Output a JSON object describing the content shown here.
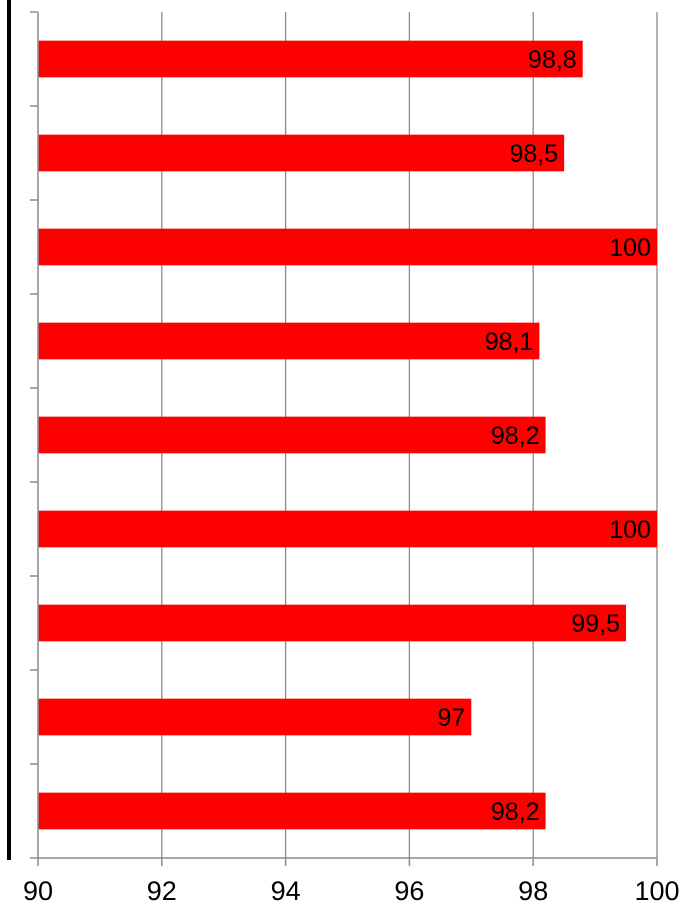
{
  "chart_data": {
    "type": "bar",
    "orientation": "horizontal",
    "categories": [
      "",
      "",
      "",
      "",
      "",
      "",
      "",
      "",
      ""
    ],
    "values": [
      98.8,
      98.5,
      100,
      98.1,
      98.2,
      100,
      99.5,
      97,
      98.2
    ],
    "data_labels": [
      "98,8",
      "98,5",
      "100",
      "98,1",
      "98,2",
      "100",
      "99,5",
      "97",
      "98,2"
    ],
    "xlim": [
      90,
      100
    ],
    "x_ticks": [
      90,
      92,
      94,
      96,
      98,
      100
    ],
    "x_tick_labels": [
      "90",
      "92",
      "94",
      "96",
      "98",
      "100"
    ],
    "title": "",
    "xlabel": "",
    "ylabel": "",
    "grid": "vertical",
    "legend": "none",
    "bar_color": "#ff0000"
  }
}
